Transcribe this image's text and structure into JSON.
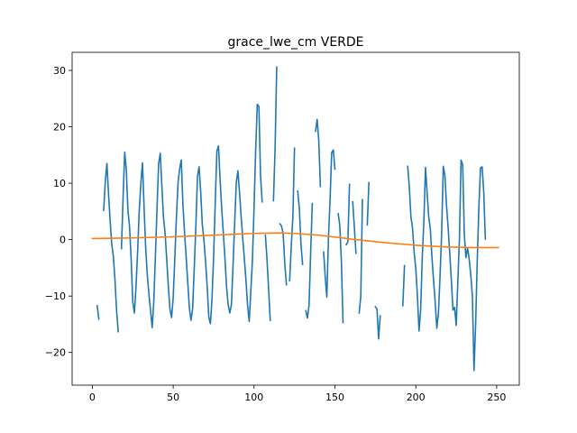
{
  "chart_data": {
    "type": "line",
    "title": "grace_lwe_cm VERDE",
    "xlabel": "",
    "ylabel": "",
    "xlim": [
      -12.5,
      264
    ],
    "ylim": [
      -25.8,
      33.2
    ],
    "xticks": [
      0,
      50,
      100,
      150,
      200,
      250
    ],
    "yticks": [
      -20,
      -10,
      0,
      10,
      20,
      30
    ],
    "grid": false,
    "series": [
      {
        "color": "#1f77b4",
        "values": [
          [
            3,
            -11.7
          ],
          [
            4,
            -14.1
          ],
          [
            5,
            null
          ],
          [
            6,
            null
          ],
          [
            7,
            5.2
          ],
          [
            8,
            10.2
          ],
          [
            9,
            13.5
          ],
          [
            10,
            8.2
          ],
          [
            11,
            3.3
          ],
          [
            12,
            -0.8
          ],
          [
            13,
            -3.0
          ],
          [
            14,
            -7.2
          ],
          [
            15,
            -12.6
          ],
          [
            16,
            -16.3
          ],
          [
            17,
            null
          ],
          [
            18,
            -1.6
          ],
          [
            19,
            7.3
          ],
          [
            20,
            15.5
          ],
          [
            21,
            12.4
          ],
          [
            22,
            5.2
          ],
          [
            23,
            2.3
          ],
          [
            24,
            -3.5
          ],
          [
            25,
            -11.0
          ],
          [
            26,
            -13.0
          ],
          [
            27,
            -8.3
          ],
          [
            28,
            -2.1
          ],
          [
            29,
            5.1
          ],
          [
            30,
            10.0
          ],
          [
            31,
            13.6
          ],
          [
            32,
            5.6
          ],
          [
            33,
            -1.6
          ],
          [
            34,
            -6.3
          ],
          [
            35,
            -9.7
          ],
          [
            36,
            -12.6
          ],
          [
            37,
            -15.6
          ],
          [
            38,
            -11.0
          ],
          [
            39,
            -2.8
          ],
          [
            40,
            5.6
          ],
          [
            41,
            13.5
          ],
          [
            42,
            15.3
          ],
          [
            43,
            9.4
          ],
          [
            44,
            3.9
          ],
          [
            45,
            1.1
          ],
          [
            46,
            -3.5
          ],
          [
            47,
            -8.3
          ],
          [
            48,
            -12.4
          ],
          [
            49,
            -13.8
          ],
          [
            50,
            -10.3
          ],
          [
            51,
            -3.3
          ],
          [
            52,
            4.1
          ],
          [
            53,
            10.1
          ],
          [
            54,
            12.6
          ],
          [
            55,
            14.1
          ],
          [
            56,
            6.2
          ],
          [
            57,
            1.3
          ],
          [
            58,
            -3.0
          ],
          [
            59,
            -7.6
          ],
          [
            60,
            -12.1
          ],
          [
            61,
            -14.3
          ],
          [
            62,
            -12.3
          ],
          [
            63,
            -5.1
          ],
          [
            64,
            2.3
          ],
          [
            65,
            11.2
          ],
          [
            66,
            12.9
          ],
          [
            67,
            8.5
          ],
          [
            68,
            2.6
          ],
          [
            69,
            0.0
          ],
          [
            70,
            -3.9
          ],
          [
            71,
            -8.2
          ],
          [
            72,
            -13.7
          ],
          [
            73,
            -14.9
          ],
          [
            74,
            -10.4
          ],
          [
            75,
            -2.9
          ],
          [
            76,
            6.6
          ],
          [
            77,
            15.7
          ],
          [
            78,
            16.6
          ],
          [
            79,
            10.6
          ],
          [
            80,
            5.5
          ],
          [
            81,
            1.1
          ],
          [
            82,
            -3.3
          ],
          [
            83,
            -8.4
          ],
          [
            84,
            -11.6
          ],
          [
            85,
            -13.0
          ],
          [
            86,
            -11.5
          ],
          [
            87,
            -4.6
          ],
          [
            88,
            2.9
          ],
          [
            89,
            10.1
          ],
          [
            90,
            12.2
          ],
          [
            91,
            8.4
          ],
          [
            92,
            4.1
          ],
          [
            93,
            0.2
          ],
          [
            94,
            -3.4
          ],
          [
            95,
            -7.2
          ],
          [
            96,
            -11.7
          ],
          [
            97,
            -14.5
          ],
          [
            98,
            -9.1
          ],
          [
            99,
            -3.5
          ],
          [
            100,
            5.8
          ],
          [
            101,
            15.9
          ],
          [
            102,
            24.0
          ],
          [
            103,
            23.6
          ],
          [
            104,
            11.3
          ],
          [
            105,
            6.7
          ],
          [
            106,
            null
          ],
          [
            107,
            0.8
          ],
          [
            108,
            -3.5
          ],
          [
            109,
            -8.8
          ],
          [
            110,
            -14.3
          ],
          [
            111,
            null
          ],
          [
            112,
            6.9
          ],
          [
            113,
            16.2
          ],
          [
            114,
            30.6
          ],
          [
            115,
            null
          ],
          [
            116,
            2.8
          ],
          [
            117,
            2.4
          ],
          [
            118,
            1.0
          ],
          [
            119,
            -4.3
          ],
          [
            120,
            -8.0
          ],
          [
            121,
            null
          ],
          [
            122,
            -7.3
          ],
          [
            123,
            -1.1
          ],
          [
            124,
            4.1
          ],
          [
            125,
            16.2
          ],
          [
            126,
            null
          ],
          [
            127,
            8.6
          ],
          [
            128,
            5.5
          ],
          [
            129,
            -0.8
          ],
          [
            130,
            -4.4
          ],
          [
            131,
            null
          ],
          [
            132,
            -12.6
          ],
          [
            133,
            -13.9
          ],
          [
            134,
            -11.6
          ],
          [
            135,
            -2.2
          ],
          [
            136,
            6.4
          ],
          [
            137,
            null
          ],
          [
            138,
            19.2
          ],
          [
            139,
            21.3
          ],
          [
            140,
            17.6
          ],
          [
            141,
            9.4
          ],
          [
            142,
            null
          ],
          [
            143,
            -2.2
          ],
          [
            144,
            -6.6
          ],
          [
            145,
            -10.2
          ],
          [
            146,
            0.4
          ],
          [
            147,
            7.1
          ],
          [
            148,
            15.4
          ],
          [
            149,
            15.9
          ],
          [
            150,
            12.5
          ],
          [
            151,
            null
          ],
          [
            152,
            4.6
          ],
          [
            153,
            2.6
          ],
          [
            154,
            -4.0
          ],
          [
            155,
            -14.7
          ],
          [
            156,
            null
          ],
          [
            157,
            -0.9
          ],
          [
            158,
            -0.4
          ],
          [
            159,
            9.8
          ],
          [
            160,
            null
          ],
          [
            161,
            6.7
          ],
          [
            162,
            2.2
          ],
          [
            163,
            -2.4
          ],
          [
            164,
            null
          ],
          [
            165,
            -13.0
          ],
          [
            166,
            -10.0
          ],
          [
            167,
            7.1
          ],
          [
            168,
            null
          ],
          [
            169,
            null
          ],
          [
            170,
            2.6
          ],
          [
            171,
            10.1
          ],
          [
            172,
            null
          ],
          [
            173,
            null
          ],
          [
            174,
            null
          ],
          [
            175,
            -11.9
          ],
          [
            176,
            -12.3
          ],
          [
            177,
            -17.6
          ],
          [
            178,
            -13.5
          ],
          [
            179,
            null
          ],
          [
            180,
            null
          ],
          [
            181,
            null
          ],
          [
            182,
            null
          ],
          [
            183,
            null
          ],
          [
            184,
            null
          ],
          [
            185,
            null
          ],
          [
            186,
            null
          ],
          [
            187,
            null
          ],
          [
            188,
            null
          ],
          [
            189,
            null
          ],
          [
            190,
            null
          ],
          [
            191,
            null
          ],
          [
            192,
            -11.7
          ],
          [
            193,
            -4.6
          ],
          [
            194,
            null
          ],
          [
            195,
            13.0
          ],
          [
            196,
            9.3
          ],
          [
            197,
            4.0
          ],
          [
            198,
            2.0
          ],
          [
            199,
            -2.3
          ],
          [
            200,
            -5.1
          ],
          [
            201,
            -10.0
          ],
          [
            202,
            -16.2
          ],
          [
            203,
            -12.5
          ],
          [
            204,
            -3.2
          ],
          [
            205,
            3.3
          ],
          [
            206,
            12.8
          ],
          [
            207,
            8.3
          ],
          [
            208,
            4.0
          ],
          [
            209,
            1.8
          ],
          [
            210,
            -3.2
          ],
          [
            211,
            -7.3
          ],
          [
            212,
            -11.1
          ],
          [
            213,
            -15.7
          ],
          [
            214,
            -13.0
          ],
          [
            215,
            -6.4
          ],
          [
            216,
            1.3
          ],
          [
            217,
            13.0
          ],
          [
            218,
            11.4
          ],
          [
            219,
            6.0
          ],
          [
            220,
            2.1
          ],
          [
            221,
            -2.4
          ],
          [
            222,
            -7.3
          ],
          [
            223,
            -12.5
          ],
          [
            224,
            -12.0
          ],
          [
            225,
            -15.2
          ],
          [
            226,
            -7.4
          ],
          [
            227,
            0.3
          ],
          [
            228,
            14.1
          ],
          [
            229,
            13.3
          ],
          [
            230,
            1.0
          ],
          [
            231,
            -3.2
          ],
          [
            232,
            -1.5
          ],
          [
            233,
            -3.4
          ],
          [
            234,
            -6.3
          ],
          [
            235,
            -10.0
          ],
          [
            236,
            -23.2
          ],
          [
            237,
            -15.0
          ],
          [
            238,
            -3.7
          ],
          [
            239,
            5.6
          ],
          [
            240,
            12.7
          ],
          [
            241,
            12.9
          ],
          [
            242,
            8.5
          ],
          [
            243,
            0.1
          ]
        ]
      },
      {
        "color": "#ff7f0e",
        "values": [
          [
            0,
            0.2
          ],
          [
            25,
            0.3
          ],
          [
            50,
            0.5
          ],
          [
            75,
            0.8
          ],
          [
            100,
            1.1
          ],
          [
            115,
            1.2
          ],
          [
            125,
            1.1
          ],
          [
            140,
            0.8
          ],
          [
            160,
            0.1
          ],
          [
            180,
            -0.5
          ],
          [
            200,
            -1.0
          ],
          [
            220,
            -1.3
          ],
          [
            235,
            -1.4
          ],
          [
            251,
            -1.4
          ]
        ]
      }
    ]
  }
}
